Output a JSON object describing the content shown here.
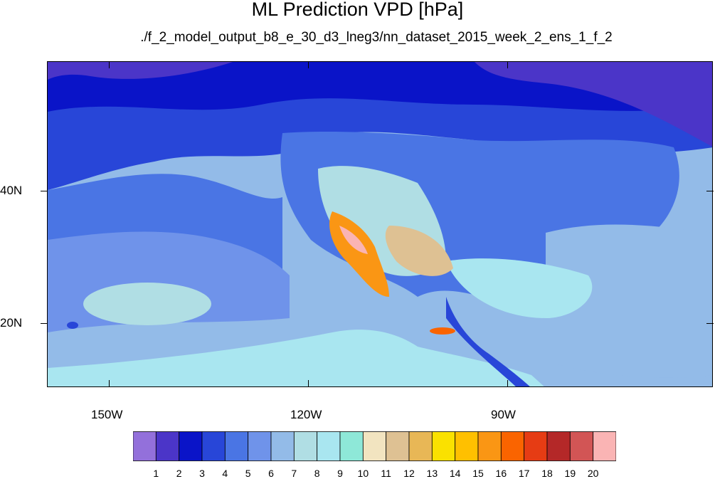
{
  "title": "ML Prediction VPD [hPa]",
  "subtitle": "./f_2_model_output_b8_e_30_d3_lneg3/nn_dataset_2015_week_2_ens_1_f_2",
  "y_axis_labels": [
    "40N",
    "20N"
  ],
  "x_axis_labels": [
    "150W",
    "120W",
    "90W"
  ],
  "colorbar": {
    "labels": [
      "1",
      "2",
      "3",
      "4",
      "5",
      "6",
      "7",
      "8",
      "9",
      "10",
      "11",
      "12",
      "13",
      "14",
      "15",
      "16",
      "17",
      "18",
      "19",
      "20"
    ],
    "colors": [
      "#9370db",
      "#4b35c8",
      "#0a14c8",
      "#2846d8",
      "#4a75e4",
      "#6f93ea",
      "#93bbe8",
      "#b0dee4",
      "#a9e6f0",
      "#8ee8d8",
      "#f2e4c0",
      "#dec193",
      "#e8b756",
      "#fae100",
      "#ffc000",
      "#fa9614",
      "#fa6400",
      "#e63c14",
      "#b42828",
      "#d25555",
      "#fab4b4"
    ]
  },
  "map_colors": {
    "ocean_north": "#0a14c8",
    "ocean_mid": "#4a75e4",
    "ocean_light": "#6f93ea",
    "ocean_pale": "#93bbe8",
    "tropics": "#b0dee4",
    "hot_core": "#e8b756",
    "hottest": "#fab4b4"
  }
}
